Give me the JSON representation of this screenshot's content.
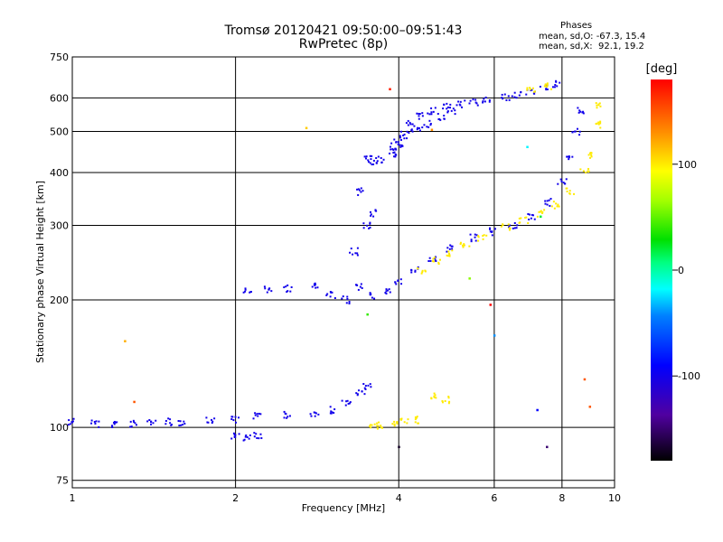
{
  "title_line1": "Tromsø 20120421 09:50:00–09:51:43",
  "title_line2": "RwPretec (8p)",
  "phases": {
    "label": "Phases",
    "line_o": "mean, sd,O: -67.3, 15.4",
    "line_x": "mean, sd,X:  92.1, 19.2"
  },
  "colorbar": {
    "label": "[deg]",
    "ticks": [
      {
        "value": 100,
        "label": "100"
      },
      {
        "value": 0,
        "label": "0"
      },
      {
        "value": -100,
        "label": "-100"
      }
    ],
    "range": [
      -180,
      180
    ]
  },
  "chart_data": {
    "type": "scatter",
    "xlabel": "Frequency [MHz]",
    "ylabel": "Stationary phase Virtual Height [km]",
    "xscale": "log",
    "yscale": "log",
    "xlim": [
      1,
      10
    ],
    "ylim": [
      72,
      750
    ],
    "xticks": [
      {
        "value": 1,
        "label": "1"
      },
      {
        "value": 2,
        "label": "2"
      },
      {
        "value": 4,
        "label": "4"
      },
      {
        "value": 6,
        "label": "6"
      },
      {
        "value": 8,
        "label": "8"
      },
      {
        "value": 10,
        "label": "10"
      }
    ],
    "yticks": [
      {
        "value": 75,
        "label": "75"
      },
      {
        "value": 100,
        "label": "100"
      },
      {
        "value": 200,
        "label": "200"
      },
      {
        "value": 300,
        "label": "300"
      },
      {
        "value": 400,
        "label": "400"
      },
      {
        "value": 500,
        "label": "500"
      },
      {
        "value": 600,
        "label": "600"
      },
      {
        "value": 750,
        "label": "750"
      }
    ],
    "grid": true,
    "series": [
      {
        "mode": "O",
        "points": [
          [
            1.0,
            103
          ],
          [
            1.1,
            102
          ],
          [
            1.2,
            102
          ],
          [
            1.3,
            102
          ],
          [
            1.4,
            103
          ],
          [
            1.5,
            103
          ],
          [
            1.6,
            103
          ],
          [
            1.8,
            104
          ],
          [
            2.0,
            104
          ],
          [
            2.2,
            106
          ],
          [
            2.5,
            107
          ],
          [
            2.8,
            108
          ],
          [
            3.0,
            110
          ],
          [
            3.2,
            115
          ],
          [
            3.4,
            120
          ],
          [
            3.5,
            125
          ],
          [
            2.0,
            95
          ],
          [
            2.1,
            94
          ],
          [
            2.2,
            96
          ],
          [
            2.1,
            210
          ],
          [
            2.3,
            212
          ],
          [
            2.5,
            213
          ],
          [
            2.8,
            215
          ],
          [
            3.0,
            205
          ],
          [
            3.2,
            200
          ],
          [
            3.4,
            215
          ],
          [
            3.6,
            205
          ],
          [
            3.8,
            210
          ],
          [
            4.0,
            220
          ],
          [
            4.3,
            235
          ],
          [
            4.6,
            250
          ],
          [
            5.0,
            265
          ],
          [
            5.5,
            280
          ],
          [
            6.0,
            290
          ],
          [
            6.5,
            298
          ],
          [
            7.0,
            315
          ],
          [
            7.5,
            340
          ],
          [
            8.0,
            380
          ],
          [
            8.3,
            430
          ],
          [
            8.5,
            500
          ],
          [
            8.7,
            560
          ],
          [
            3.3,
            260
          ],
          [
            3.5,
            300
          ],
          [
            3.6,
            320
          ],
          [
            3.4,
            360
          ],
          [
            3.5,
            430
          ],
          [
            3.6,
            425
          ],
          [
            3.7,
            430
          ],
          [
            3.9,
            440
          ],
          [
            4.0,
            460
          ],
          [
            4.1,
            490
          ],
          [
            4.2,
            520
          ],
          [
            4.4,
            545
          ],
          [
            4.6,
            560
          ],
          [
            4.9,
            575
          ],
          [
            5.2,
            580
          ],
          [
            5.5,
            585
          ],
          [
            5.8,
            595
          ],
          [
            3.9,
            460
          ],
          [
            4.0,
            480
          ],
          [
            4.3,
            500
          ],
          [
            4.5,
            520
          ],
          [
            4.8,
            540
          ],
          [
            5.0,
            560
          ],
          [
            6.3,
            600
          ],
          [
            6.6,
            610
          ],
          [
            7.0,
            620
          ],
          [
            7.4,
            635
          ],
          [
            7.8,
            645
          ]
        ],
        "phase": -100
      },
      {
        "mode": "X",
        "points": [
          [
            3.6,
            100
          ],
          [
            3.7,
            101
          ],
          [
            3.9,
            102
          ],
          [
            4.1,
            103
          ],
          [
            4.3,
            104
          ],
          [
            4.6,
            118
          ],
          [
            4.9,
            116
          ],
          [
            4.4,
            235
          ],
          [
            4.7,
            248
          ],
          [
            5.0,
            258
          ],
          [
            5.3,
            268
          ],
          [
            5.7,
            280
          ],
          [
            6.3,
            298
          ],
          [
            6.8,
            308
          ],
          [
            7.3,
            320
          ],
          [
            7.8,
            335
          ],
          [
            8.3,
            360
          ],
          [
            8.8,
            400
          ],
          [
            9.1,
            440
          ],
          [
            9.3,
            520
          ],
          [
            9.4,
            580
          ],
          [
            7.0,
            625
          ],
          [
            7.5,
            640
          ]
        ],
        "phase": 100
      }
    ],
    "scattered": [
      {
        "x": 1.3,
        "y": 115,
        "phase": 150
      },
      {
        "x": 1.25,
        "y": 160,
        "phase": 120
      },
      {
        "x": 2.7,
        "y": 510,
        "phase": 110
      },
      {
        "x": 3.85,
        "y": 630,
        "phase": 170
      },
      {
        "x": 4.6,
        "y": 505,
        "phase": 130
      },
      {
        "x": 5.9,
        "y": 195,
        "phase": 180
      },
      {
        "x": 5.4,
        "y": 225,
        "phase": 60
      },
      {
        "x": 6.9,
        "y": 460,
        "phase": -20
      },
      {
        "x": 7.3,
        "y": 315,
        "phase": 20
      },
      {
        "x": 7.5,
        "y": 90,
        "phase": -150
      },
      {
        "x": 6.0,
        "y": 165,
        "phase": -40
      },
      {
        "x": 4.0,
        "y": 90,
        "phase": -170
      },
      {
        "x": 3.5,
        "y": 185,
        "phase": 40
      },
      {
        "x": 7.2,
        "y": 110,
        "phase": -90
      },
      {
        "x": 8.8,
        "y": 130,
        "phase": 150
      },
      {
        "x": 9.0,
        "y": 112,
        "phase": 150
      }
    ]
  }
}
